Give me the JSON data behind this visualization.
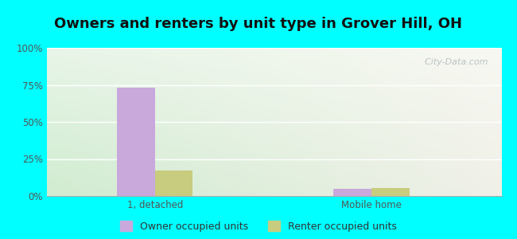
{
  "title": "Owners and renters by unit type in Grover Hill, OH",
  "categories": [
    "1, detached",
    "Mobile home"
  ],
  "series": [
    {
      "name": "Owner occupied units",
      "values": [
        73.0,
        5.0
      ],
      "color": "#c9a8dc"
    },
    {
      "name": "Renter occupied units",
      "values": [
        17.0,
        5.5
      ],
      "color": "#c8cc7e"
    }
  ],
  "ylim": [
    0,
    100
  ],
  "yticks": [
    0,
    25,
    50,
    75,
    100
  ],
  "ytick_labels": [
    "0%",
    "25%",
    "50%",
    "75%",
    "100%"
  ],
  "background_outer": "#00ffff",
  "grad_color_topleft": "#e8f5e8",
  "grad_color_topright": "#f8f8f2",
  "grad_color_bottomleft": "#d0ecd0",
  "grad_color_bottomright": "#f0f0e8",
  "bar_width": 0.35,
  "group_positions": [
    1.0,
    3.0
  ],
  "xlim": [
    0,
    4.2
  ],
  "watermark": "  City-Data.com",
  "title_fontsize": 13,
  "legend_fontsize": 9,
  "tick_fontsize": 8.5
}
